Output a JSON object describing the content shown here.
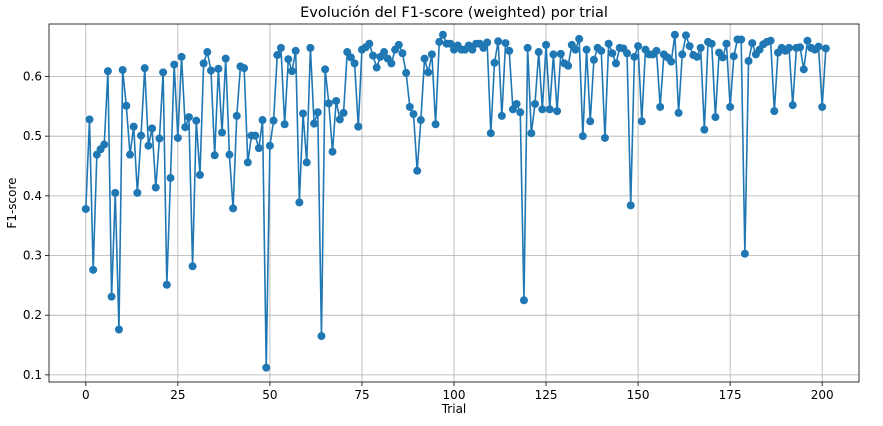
{
  "chart_data": {
    "type": "line",
    "title": "Evolución del F1-score (weighted) por trial",
    "xlabel": "Trial",
    "ylabel": "F1-score",
    "xlim": [
      -10,
      210
    ],
    "ylim": [
      0.088,
      0.688
    ],
    "xticks": [
      0,
      25,
      50,
      75,
      100,
      125,
      150,
      175,
      200
    ],
    "yticks": [
      0.1,
      0.2,
      0.3,
      0.4,
      0.5,
      0.6
    ],
    "xtick_labels": [
      "0",
      "25",
      "50",
      "75",
      "100",
      "125",
      "150",
      "175",
      "200"
    ],
    "ytick_labels": [
      "0.1",
      "0.2",
      "0.3",
      "0.4",
      "0.5",
      "0.6"
    ],
    "grid": true,
    "marker": "circle",
    "color": "#1f77b4",
    "series": [
      {
        "values": [
          0.378,
          0.528,
          0.276,
          0.469,
          0.478,
          0.486,
          0.609,
          0.231,
          0.405,
          0.176,
          0.611,
          0.551,
          0.469,
          0.516,
          0.405,
          0.501,
          0.614,
          0.484,
          0.513,
          0.414,
          0.496,
          0.607,
          0.251,
          0.43,
          0.62,
          0.497,
          0.633,
          0.515,
          0.532,
          0.282,
          0.526,
          0.435,
          0.622,
          0.641,
          0.61,
          0.468,
          0.613,
          0.506,
          0.63,
          0.469,
          0.379,
          0.534,
          0.617,
          0.614,
          0.456,
          0.501,
          0.501,
          0.48,
          0.527,
          0.112,
          0.484,
          0.526,
          0.636,
          0.648,
          0.52,
          0.629,
          0.609,
          0.643,
          0.389,
          0.538,
          0.456,
          0.648,
          0.521,
          0.54,
          0.165,
          0.612,
          0.555,
          0.474,
          0.559,
          0.528,
          0.539,
          0.641,
          0.632,
          0.622,
          0.516,
          0.645,
          0.649,
          0.655,
          0.635,
          0.615,
          0.633,
          0.641,
          0.63,
          0.622,
          0.645,
          0.653,
          0.639,
          0.606,
          0.549,
          0.537,
          0.442,
          0.527,
          0.63,
          0.607,
          0.637,
          0.52,
          0.658,
          0.67,
          0.655,
          0.655,
          0.645,
          0.652,
          0.645,
          0.645,
          0.652,
          0.645,
          0.655,
          0.655,
          0.648,
          0.657,
          0.505,
          0.623,
          0.659,
          0.534,
          0.656,
          0.643,
          0.545,
          0.554,
          0.54,
          0.225,
          0.648,
          0.505,
          0.554,
          0.641,
          0.545,
          0.653,
          0.545,
          0.637,
          0.542,
          0.638,
          0.622,
          0.618,
          0.653,
          0.645,
          0.663,
          0.5,
          0.645,
          0.525,
          0.628,
          0.648,
          0.643,
          0.497,
          0.655,
          0.639,
          0.622,
          0.648,
          0.647,
          0.639,
          0.384,
          0.633,
          0.651,
          0.525,
          0.645,
          0.637,
          0.637,
          0.643,
          0.549,
          0.637,
          0.632,
          0.625,
          0.67,
          0.539,
          0.637,
          0.669,
          0.651,
          0.636,
          0.633,
          0.648,
          0.511,
          0.658,
          0.655,
          0.532,
          0.64,
          0.632,
          0.655,
          0.549,
          0.634,
          0.662,
          0.662,
          0.303,
          0.626,
          0.656,
          0.637,
          0.645,
          0.654,
          0.658,
          0.66,
          0.542,
          0.64,
          0.648,
          0.643,
          0.648,
          0.552,
          0.648,
          0.649,
          0.612,
          0.66,
          0.648,
          0.645,
          0.65,
          0.549,
          0.647
        ]
      }
    ]
  }
}
